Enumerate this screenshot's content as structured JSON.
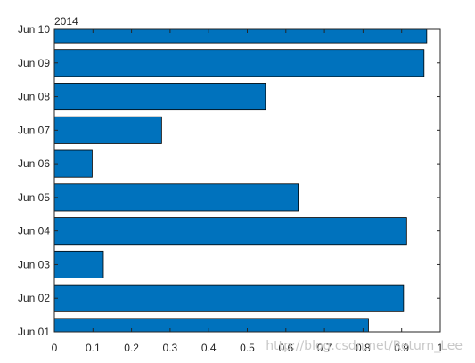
{
  "chart_data": {
    "type": "bar",
    "orientation": "horizontal",
    "categories": [
      "Jun 01",
      "Jun 02",
      "Jun 03",
      "Jun 04",
      "Jun 05",
      "Jun 06",
      "Jun 07",
      "Jun 08",
      "Jun 09",
      "Jun 10"
    ],
    "values": [
      0.814,
      0.905,
      0.127,
      0.913,
      0.632,
      0.098,
      0.278,
      0.547,
      0.958,
      0.965
    ],
    "xlim": [
      0,
      1
    ],
    "xticks": [
      "0",
      "0.1",
      "0.2",
      "0.3",
      "0.4",
      "0.5",
      "0.6",
      "0.7",
      "0.8",
      "0.9",
      "1"
    ],
    "annotation": "2014",
    "title": "",
    "xlabel": "",
    "ylabel": "",
    "grid": false,
    "bar_color": "#0072BD"
  },
  "watermark": "http://blog.csdn.net/Return_Lee"
}
